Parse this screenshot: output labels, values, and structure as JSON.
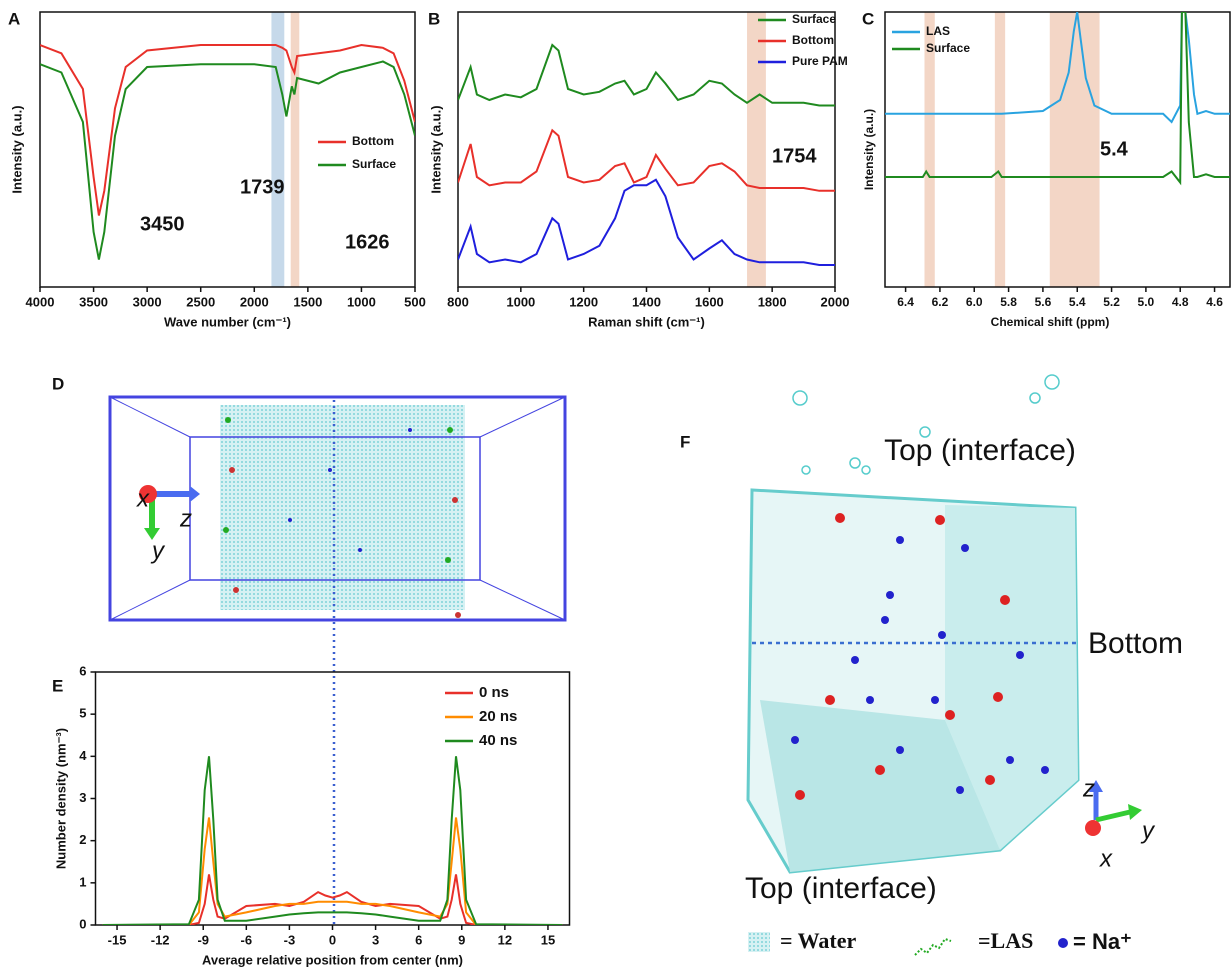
{
  "chart_data": [
    {
      "type": "line",
      "label": "A",
      "xlabel": "Wave number (cm⁻¹)",
      "ylabel": "Intensity (a.u.)",
      "xlim": [
        4000,
        500
      ],
      "xticks": [
        4000,
        3500,
        3000,
        2500,
        2000,
        1500,
        1000,
        500
      ],
      "ylim": [
        0,
        1
      ],
      "x": [
        4000,
        3800,
        3600,
        3500,
        3450,
        3400,
        3300,
        3200,
        3000,
        2500,
        2000,
        1800,
        1739,
        1700,
        1650,
        1626,
        1600,
        1400,
        1200,
        1000,
        800,
        700,
        600,
        500
      ],
      "series": [
        {
          "name": "Bottom",
          "color": "#e8302a",
          "values": [
            0.88,
            0.85,
            0.72,
            0.4,
            0.26,
            0.35,
            0.65,
            0.8,
            0.86,
            0.88,
            0.88,
            0.88,
            0.87,
            0.86,
            0.8,
            0.78,
            0.84,
            0.85,
            0.86,
            0.88,
            0.87,
            0.85,
            0.75,
            0.6
          ]
        },
        {
          "name": "Surface",
          "color": "#1f8a1f",
          "values": [
            0.81,
            0.78,
            0.6,
            0.2,
            0.1,
            0.2,
            0.55,
            0.72,
            0.8,
            0.81,
            0.81,
            0.8,
            0.7,
            0.62,
            0.73,
            0.7,
            0.76,
            0.74,
            0.78,
            0.8,
            0.82,
            0.8,
            0.7,
            0.55
          ]
        }
      ],
      "bands": [
        {
          "from": 1840,
          "to": 1720,
          "color": "#c6d9ea"
        },
        {
          "from": 1660,
          "to": 1580,
          "color": "#f3d6c6"
        }
      ],
      "annotations": [
        "3450",
        "1739",
        "1626"
      ]
    },
    {
      "type": "line",
      "label": "B",
      "xlabel": "Raman shift (cm⁻¹)",
      "ylabel": "Intensity (a.u.)",
      "xlim": [
        800,
        2000
      ],
      "xticks": [
        800,
        1000,
        1200,
        1400,
        1600,
        1800,
        2000
      ],
      "ylim": [
        0,
        1
      ],
      "x": [
        800,
        840,
        860,
        900,
        950,
        1000,
        1050,
        1100,
        1120,
        1150,
        1200,
        1250,
        1300,
        1330,
        1360,
        1400,
        1430,
        1460,
        1500,
        1550,
        1600,
        1640,
        1680,
        1720,
        1760,
        1800,
        1850,
        1900,
        1950,
        2000
      ],
      "series": [
        {
          "name": "Surface",
          "color": "#1f8a1f",
          "values": [
            0.68,
            0.8,
            0.7,
            0.68,
            0.7,
            0.69,
            0.72,
            0.88,
            0.86,
            0.72,
            0.7,
            0.71,
            0.74,
            0.75,
            0.7,
            0.72,
            0.78,
            0.74,
            0.68,
            0.7,
            0.75,
            0.74,
            0.7,
            0.67,
            0.7,
            0.67,
            0.67,
            0.67,
            0.66,
            0.66
          ]
        },
        {
          "name": "Bottom",
          "color": "#e8302a",
          "values": [
            0.38,
            0.52,
            0.4,
            0.37,
            0.38,
            0.38,
            0.42,
            0.57,
            0.55,
            0.4,
            0.38,
            0.39,
            0.44,
            0.45,
            0.38,
            0.4,
            0.48,
            0.43,
            0.37,
            0.38,
            0.44,
            0.45,
            0.42,
            0.37,
            0.36,
            0.36,
            0.36,
            0.36,
            0.35,
            0.35
          ]
        },
        {
          "name": "Pure PAM",
          "color": "#1f1fdd",
          "values": [
            0.1,
            0.22,
            0.12,
            0.09,
            0.1,
            0.09,
            0.12,
            0.25,
            0.23,
            0.1,
            0.12,
            0.15,
            0.25,
            0.35,
            0.37,
            0.37,
            0.39,
            0.33,
            0.18,
            0.1,
            0.14,
            0.17,
            0.12,
            0.1,
            0.09,
            0.09,
            0.09,
            0.09,
            0.08,
            0.08
          ]
        }
      ],
      "bands": [
        {
          "from": 1720,
          "to": 1780,
          "color": "#f3d6c6"
        }
      ],
      "annotations": [
        "1754"
      ]
    },
    {
      "type": "line",
      "label": "C",
      "xlabel": "Chemical shift (ppm)",
      "ylabel": "Intensity (a.u.)",
      "xlim": [
        6.52,
        4.51
      ],
      "xticks": [
        6.4,
        6.2,
        {
          "value": 6,
          "label": "6.0"
        },
        5.8,
        5.6,
        5.4,
        5.2,
        {
          "value": 5,
          "label": "5.0"
        },
        4.8,
        4.6
      ],
      "ylim": [
        0,
        1
      ],
      "x": [
        6.52,
        6.3,
        6.28,
        6.26,
        6.2,
        5.9,
        5.86,
        5.84,
        5.6,
        5.5,
        5.45,
        5.42,
        5.4,
        5.38,
        5.35,
        5.3,
        5.2,
        4.9,
        4.85,
        4.8,
        4.79,
        4.77,
        4.75,
        4.72,
        4.7,
        4.65,
        4.6,
        4.51
      ],
      "series": [
        {
          "name": "LAS",
          "color": "#29a3e0",
          "values": [
            0.63,
            0.63,
            0.63,
            0.63,
            0.63,
            0.63,
            0.63,
            0.63,
            0.64,
            0.68,
            0.78,
            0.93,
            1,
            0.9,
            0.76,
            0.66,
            0.63,
            0.63,
            0.6,
            0.66,
            1,
            1,
            0.9,
            0.7,
            0.63,
            0.64,
            0.63,
            0.63
          ]
        },
        {
          "name": "Surface",
          "color": "#1f8a1f",
          "values": [
            0.4,
            0.4,
            0.42,
            0.4,
            0.4,
            0.4,
            0.42,
            0.4,
            0.4,
            0.4,
            0.4,
            0.4,
            0.4,
            0.4,
            0.4,
            0.4,
            0.4,
            0.4,
            0.42,
            0.38,
            1,
            1,
            0.6,
            0.4,
            0.4,
            0.41,
            0.4,
            0.4
          ]
        }
      ],
      "bands": [
        {
          "from": 6.29,
          "to": 6.23,
          "color": "#f3d6c6"
        },
        {
          "from": 5.88,
          "to": 5.82,
          "color": "#f3d6c6"
        },
        {
          "from": 5.56,
          "to": 5.27,
          "color": "#f3d6c6"
        }
      ],
      "annotations": [
        "5.4"
      ]
    },
    {
      "type": "line",
      "label": "E",
      "xlabel": "Average relative position from center (nm)",
      "ylabel": "Number density (nm⁻³)",
      "xlim": [
        -16.5,
        16.5
      ],
      "xticks": [
        -15,
        -12,
        -9,
        -6,
        -3,
        0,
        3,
        6,
        9,
        12,
        15
      ],
      "ylim": [
        0,
        6
      ],
      "yticks": [
        0,
        1,
        2,
        3,
        4,
        5,
        6
      ],
      "x": [
        -16,
        -10,
        -9.3,
        -8.9,
        -8.6,
        -8.3,
        -8,
        -7.5,
        -6,
        -4,
        -3,
        -2,
        -1,
        -0.5,
        0,
        0.5,
        1,
        2,
        3,
        4,
        6,
        7.5,
        8,
        8.3,
        8.6,
        8.9,
        9.3,
        10,
        16
      ],
      "series": [
        {
          "name": "0 ns",
          "color": "#e8302a",
          "values": [
            0,
            0,
            0.05,
            0.5,
            1.2,
            0.6,
            0.2,
            0.15,
            0.45,
            0.5,
            0.45,
            0.55,
            0.78,
            0.7,
            0.65,
            0.7,
            0.78,
            0.55,
            0.45,
            0.5,
            0.45,
            0.15,
            0.2,
            0.6,
            1.2,
            0.5,
            0.05,
            0,
            0
          ]
        },
        {
          "name": "20 ns",
          "color": "#ff8c00",
          "values": [
            0,
            0,
            0.3,
            1.8,
            2.55,
            1.5,
            0.5,
            0.2,
            0.3,
            0.45,
            0.5,
            0.5,
            0.55,
            0.55,
            0.55,
            0.55,
            0.55,
            0.5,
            0.5,
            0.45,
            0.3,
            0.2,
            0.5,
            1.5,
            2.55,
            1.8,
            0.3,
            0,
            0
          ]
        },
        {
          "name": "40 ns",
          "color": "#1f8a1f",
          "values": [
            0,
            0.02,
            0.6,
            3.2,
            4,
            2.5,
            0.6,
            0.1,
            0.1,
            0.2,
            0.25,
            0.28,
            0.3,
            0.3,
            0.3,
            0.3,
            0.3,
            0.28,
            0.25,
            0.2,
            0.1,
            0.1,
            0.6,
            2.5,
            4,
            3.2,
            0.6,
            0.02,
            0
          ]
        }
      ]
    }
  ],
  "figures": [
    {
      "label": "D",
      "axes": [
        "x",
        "z",
        "y"
      ]
    },
    {
      "label": "F",
      "texts": [
        "Top (interface)",
        "Bottom",
        "Top (interface)"
      ],
      "axes": [
        "z",
        "y",
        "x"
      ],
      "legend": [
        "= Water",
        "=LAS",
        "= Na⁺"
      ]
    }
  ]
}
